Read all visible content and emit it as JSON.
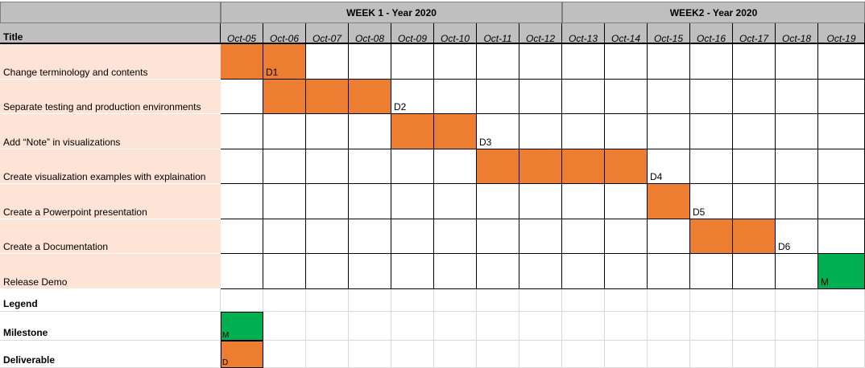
{
  "chart_data": {
    "type": "gantt",
    "header": {
      "title_label": "Title",
      "weeks": [
        {
          "label": "WEEK 1 - Year 2020",
          "span": 8
        },
        {
          "label": "WEEK2 - Year 2020",
          "span": 7
        }
      ],
      "dates": [
        "Oct-05",
        "Oct-06",
        "Oct-07",
        "Oct-08",
        "Oct-09",
        "Oct-10",
        "Oct-11",
        "Oct-12",
        "Oct-13",
        "Oct-14",
        "Oct-15",
        "Oct-16",
        "Oct-17",
        "Oct-18",
        "Oct-19"
      ]
    },
    "tasks": [
      {
        "title": "Change terminology and contents",
        "start": "Oct-05",
        "end": "Oct-06",
        "marker": "D1",
        "marker_date": "Oct-06",
        "kind": "deliverable"
      },
      {
        "title": "Separate testing and production environments",
        "start": "Oct-06",
        "end": "Oct-08",
        "marker": "D2",
        "marker_date": "Oct-09",
        "kind": "deliverable"
      },
      {
        "title": "Add “Note” in visualizations",
        "start": "Oct-09",
        "end": "Oct-10",
        "marker": "D3",
        "marker_date": "Oct-11",
        "kind": "deliverable"
      },
      {
        "title": "Create visualization examples with explaination",
        "start": "Oct-11",
        "end": "Oct-14",
        "marker": "D4",
        "marker_date": "Oct-15",
        "kind": "deliverable"
      },
      {
        "title": "Create a Powerpoint presentation",
        "start": "Oct-15",
        "end": "Oct-15",
        "marker": "D5",
        "marker_date": "Oct-16",
        "kind": "deliverable"
      },
      {
        "title": "Create a Documentation",
        "start": "Oct-16",
        "end": "Oct-17",
        "marker": "D6",
        "marker_date": "Oct-18",
        "kind": "deliverable"
      },
      {
        "title": "Release Demo",
        "start": "Oct-19",
        "end": "Oct-19",
        "marker": "M",
        "marker_date": "Oct-19",
        "kind": "milestone"
      }
    ],
    "legend": {
      "title": "Legend",
      "items": [
        {
          "label": "Milestone",
          "swatch_text": "M",
          "kind": "milestone"
        },
        {
          "label": "Deliverable",
          "swatch_text": "D",
          "kind": "deliverable"
        }
      ]
    }
  },
  "colors": {
    "bar": "#ed7d31",
    "milestone": "#00b050",
    "header": "#bfbfbf",
    "task_label_bg": "#fde4d6"
  }
}
